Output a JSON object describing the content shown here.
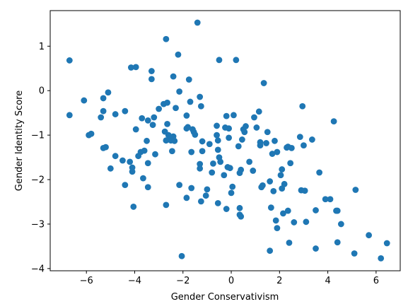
{
  "chart_data": {
    "type": "scatter",
    "xlabel": "Gender Conservativism",
    "ylabel": "Gender Identity Score",
    "xlim": [
      -7.5,
      7.0
    ],
    "ylim": [
      -4.05,
      1.8
    ],
    "xticks": [
      -6,
      -4,
      -2,
      0,
      2,
      4,
      6
    ],
    "yticks": [
      -4,
      -3,
      -2,
      -1,
      0,
      1
    ],
    "xtick_labels": [
      "−6",
      "−4",
      "−2",
      "0",
      "2",
      "4",
      "6"
    ],
    "ytick_labels": [
      "−4",
      "−3",
      "−2",
      "−1",
      "0",
      "1"
    ],
    "grid": false,
    "marker_color": "#1f77b4",
    "points": [
      [
        -6.7,
        0.68
      ],
      [
        -6.7,
        -0.55
      ],
      [
        -6.1,
        -0.22
      ],
      [
        -5.9,
        -1.0
      ],
      [
        -5.8,
        -0.97
      ],
      [
        -5.4,
        -0.6
      ],
      [
        -5.3,
        -0.46
      ],
      [
        -5.2,
        -1.27
      ],
      [
        -5.3,
        -1.29
      ],
      [
        -5.1,
        -0.04
      ],
      [
        -5.3,
        -0.17
      ],
      [
        -5.0,
        -1.75
      ],
      [
        -4.8,
        -0.53
      ],
      [
        -4.8,
        -1.47
      ],
      [
        -4.5,
        -1.57
      ],
      [
        -4.4,
        -2.12
      ],
      [
        -4.4,
        -0.46
      ],
      [
        -4.2,
        -1.6
      ],
      [
        -4.1,
        -1.73
      ],
      [
        -4.1,
        -1.82
      ],
      [
        -4.05,
        -2.61
      ],
      [
        -4.15,
        0.52
      ],
      [
        -3.95,
        0.53
      ],
      [
        -3.95,
        -0.87
      ],
      [
        -3.85,
        -1.47
      ],
      [
        -3.75,
        -1.38
      ],
      [
        -3.7,
        -0.62
      ],
      [
        -3.65,
        -1.97
      ],
      [
        -3.6,
        -1.35
      ],
      [
        -3.5,
        -1.13
      ],
      [
        -3.45,
        -2.17
      ],
      [
        -3.45,
        -0.67
      ],
      [
        -3.45,
        -1.63
      ],
      [
        -3.3,
        0.26
      ],
      [
        -3.3,
        0.44
      ],
      [
        -3.25,
        -0.77
      ],
      [
        -3.2,
        -0.6
      ],
      [
        -3.15,
        -1.43
      ],
      [
        -3.0,
        -0.41
      ],
      [
        -2.8,
        -0.3
      ],
      [
        -2.75,
        -0.92
      ],
      [
        -2.7,
        -1.12
      ],
      [
        -2.65,
        -0.27
      ],
      [
        -2.65,
        -0.75
      ],
      [
        -2.7,
        -2.57
      ],
      [
        -2.6,
        -1.0
      ],
      [
        -2.55,
        -1.05
      ],
      [
        -2.5,
        -1.12
      ],
      [
        -2.45,
        -1.36
      ],
      [
        -2.4,
        -1.03
      ],
      [
        -2.35,
        -1.13
      ],
      [
        -2.3,
        -0.39
      ],
      [
        -2.7,
        1.16
      ],
      [
        -2.4,
        0.32
      ],
      [
        -2.2,
        0.81
      ],
      [
        -2.15,
        -0.02
      ],
      [
        -2.15,
        -2.12
      ],
      [
        -2.05,
        -3.72
      ],
      [
        -1.85,
        -0.56
      ],
      [
        -1.8,
        -0.82
      ],
      [
        -1.85,
        -0.85
      ],
      [
        -1.75,
        0.25
      ],
      [
        -1.7,
        -0.25
      ],
      [
        -1.65,
        -2.19
      ],
      [
        -1.65,
        -1.38
      ],
      [
        -1.6,
        -0.87
      ],
      [
        -1.55,
        -0.93
      ],
      [
        -1.5,
        -0.99
      ],
      [
        -1.4,
        1.53
      ],
      [
        -1.3,
        -0.14
      ],
      [
        -1.3,
        -1.65
      ],
      [
        -1.3,
        -1.75
      ],
      [
        -1.25,
        -0.35
      ],
      [
        -1.2,
        -1.36
      ],
      [
        -1.2,
        -1.14
      ],
      [
        -1.85,
        -2.41
      ],
      [
        -1.25,
        -2.49
      ],
      [
        -1.05,
        -2.36
      ],
      [
        -1.0,
        -2.22
      ],
      [
        -0.9,
        -1.2
      ],
      [
        -0.8,
        -1.84
      ],
      [
        -0.75,
        -1.64
      ],
      [
        -0.6,
        -0.79
      ],
      [
        -0.6,
        -1.0
      ],
      [
        -0.55,
        -1.12
      ],
      [
        -0.55,
        -1.33
      ],
      [
        -0.5,
        -1.5
      ],
      [
        -0.45,
        -1.6
      ],
      [
        -0.55,
        -2.53
      ],
      [
        -0.5,
        0.69
      ],
      [
        -0.3,
        -1.9
      ],
      [
        -0.25,
        -0.83
      ],
      [
        -0.2,
        -0.57
      ],
      [
        -0.15,
        -1.72
      ],
      [
        -0.1,
        -0.85
      ],
      [
        -0.1,
        -1.06
      ],
      [
        -0.05,
        -1.74
      ],
      [
        0.0,
        -2.3
      ],
      [
        0.05,
        -2.16
      ],
      [
        -0.2,
        -2.66
      ],
      [
        0.1,
        -0.55
      ],
      [
        0.2,
        0.69
      ],
      [
        0.3,
        -1.25
      ],
      [
        0.35,
        -1.85
      ],
      [
        0.4,
        -1.78
      ],
      [
        0.45,
        -1.1
      ],
      [
        0.35,
        -2.64
      ],
      [
        0.35,
        -2.79
      ],
      [
        0.4,
        -2.83
      ],
      [
        0.5,
        -0.87
      ],
      [
        0.55,
        -0.93
      ],
      [
        0.6,
        -0.8
      ],
      [
        0.75,
        -1.6
      ],
      [
        0.9,
        -1.8
      ],
      [
        0.95,
        -0.6
      ],
      [
        1.05,
        -0.83
      ],
      [
        1.15,
        -0.47
      ],
      [
        1.2,
        -1.16
      ],
      [
        1.2,
        -1.23
      ],
      [
        1.25,
        -2.17
      ],
      [
        1.3,
        -2.13
      ],
      [
        1.35,
        0.17
      ],
      [
        1.45,
        -1.18
      ],
      [
        1.5,
        -0.93
      ],
      [
        1.6,
        -2.04
      ],
      [
        1.6,
        -3.6
      ],
      [
        1.65,
        -2.63
      ],
      [
        1.7,
        -1.42
      ],
      [
        1.75,
        -2.26
      ],
      [
        1.8,
        -1.13
      ],
      [
        1.85,
        -2.92
      ],
      [
        1.9,
        -3.09
      ],
      [
        1.9,
        -1.38
      ],
      [
        2.05,
        -1.9
      ],
      [
        2.1,
        -2.2
      ],
      [
        2.1,
        -1.77
      ],
      [
        2.15,
        -2.76
      ],
      [
        2.2,
        -2.1
      ],
      [
        2.3,
        -1.28
      ],
      [
        2.35,
        -2.7
      ],
      [
        2.35,
        -1.26
      ],
      [
        2.4,
        -3.42
      ],
      [
        2.45,
        -1.63
      ],
      [
        2.5,
        -1.29
      ],
      [
        2.6,
        -2.96
      ],
      [
        2.85,
        -1.04
      ],
      [
        2.9,
        -2.24
      ],
      [
        2.95,
        -0.35
      ],
      [
        3.0,
        -1.23
      ],
      [
        3.05,
        -2.25
      ],
      [
        3.1,
        -2.95
      ],
      [
        3.35,
        -1.1
      ],
      [
        3.5,
        -2.69
      ],
      [
        3.5,
        -3.55
      ],
      [
        3.65,
        -1.84
      ],
      [
        4.1,
        -2.44
      ],
      [
        4.25,
        -0.69
      ],
      [
        4.35,
        -2.7
      ],
      [
        4.4,
        -2.7
      ],
      [
        4.4,
        -3.41
      ],
      [
        4.55,
        -3.0
      ],
      [
        5.1,
        -3.66
      ],
      [
        5.15,
        -2.23
      ],
      [
        5.7,
        -3.25
      ],
      [
        6.2,
        -3.77
      ],
      [
        6.45,
        -3.43
      ],
      [
        3.9,
        -2.44
      ]
    ]
  }
}
